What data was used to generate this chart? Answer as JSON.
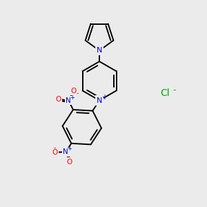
{
  "background_color": "#ebebeb",
  "bond_color": "#000000",
  "n_color": "#0000cc",
  "o_color": "#ff0000",
  "cl_color": "#00aa00",
  "line_width": 1.4,
  "figsize": [
    3.0,
    3.0
  ],
  "dpi": 100,
  "xlim": [
    0,
    10
  ],
  "ylim": [
    0,
    10
  ]
}
